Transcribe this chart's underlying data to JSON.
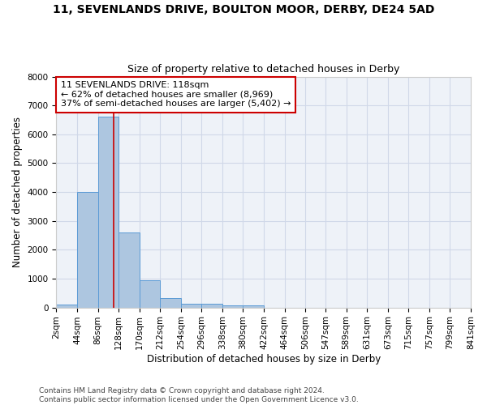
{
  "title": "11, SEVENLANDS DRIVE, BOULTON MOOR, DERBY, DE24 5AD",
  "subtitle": "Size of property relative to detached houses in Derby",
  "xlabel": "Distribution of detached houses by size in Derby",
  "ylabel": "Number of detached properties",
  "bin_edges": [
    2,
    44,
    86,
    128,
    170,
    212,
    254,
    296,
    338,
    380,
    422,
    464,
    506,
    547,
    589,
    631,
    673,
    715,
    757,
    799,
    841
  ],
  "bin_labels": [
    "2sqm",
    "44sqm",
    "86sqm",
    "128sqm",
    "170sqm",
    "212sqm",
    "254sqm",
    "296sqm",
    "338sqm",
    "380sqm",
    "422sqm",
    "464sqm",
    "506sqm",
    "547sqm",
    "589sqm",
    "631sqm",
    "673sqm",
    "715sqm",
    "757sqm",
    "799sqm",
    "841sqm"
  ],
  "bar_heights": [
    100,
    4000,
    6600,
    2600,
    950,
    320,
    120,
    120,
    80,
    80,
    0,
    0,
    0,
    0,
    0,
    0,
    0,
    0,
    0,
    0
  ],
  "bar_color": "#adc6e0",
  "bar_edge_color": "#5b9bd5",
  "property_line_x": 118,
  "property_line_color": "#cc0000",
  "annotation_text": "11 SEVENLANDS DRIVE: 118sqm\n← 62% of detached houses are smaller (8,969)\n37% of semi-detached houses are larger (5,402) →",
  "annotation_box_color": "#cc0000",
  "ylim": [
    0,
    8000
  ],
  "yticks": [
    0,
    1000,
    2000,
    3000,
    4000,
    5000,
    6000,
    7000,
    8000
  ],
  "grid_color": "#d0d8e8",
  "background_color": "#eef2f8",
  "footer_text": "Contains HM Land Registry data © Crown copyright and database right 2024.\nContains public sector information licensed under the Open Government Licence v3.0.",
  "title_fontsize": 10,
  "subtitle_fontsize": 9,
  "axis_label_fontsize": 8.5,
  "tick_fontsize": 7.5,
  "annotation_fontsize": 8,
  "footer_fontsize": 6.5
}
